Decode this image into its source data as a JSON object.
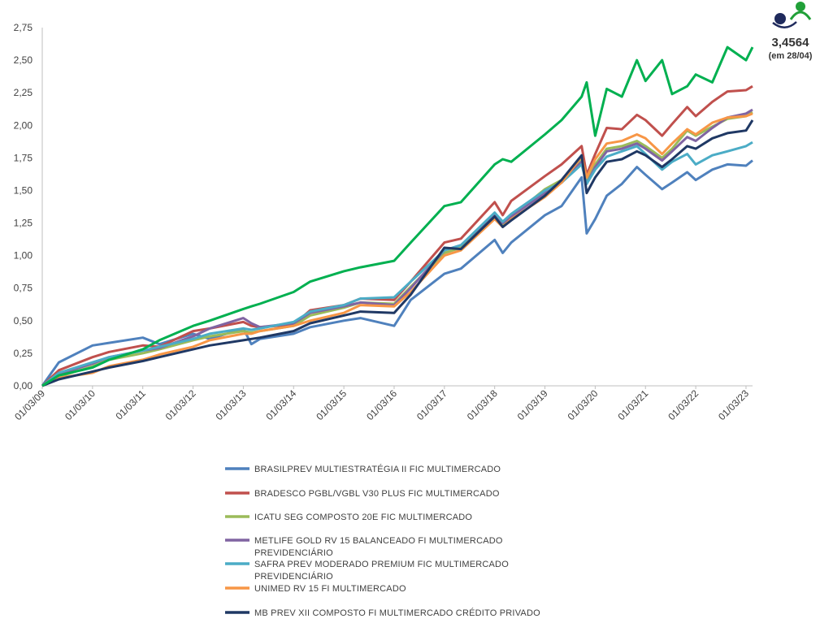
{
  "badge": {
    "value": "3,4564",
    "date_note": "(em 28/04)",
    "logo_colors": {
      "dark": "#1f2a5c",
      "green": "#21a038"
    }
  },
  "chart_data": {
    "type": "line",
    "title": "",
    "xlabel": "",
    "ylabel": "",
    "ylim": [
      0,
      2.75
    ],
    "y_ticks": [
      "0,00",
      "0,25",
      "0,50",
      "0,75",
      "1,00",
      "1,25",
      "1,50",
      "1,75",
      "2,00",
      "2,25",
      "2,50",
      "2,75"
    ],
    "x_ticks": [
      "01/03/09",
      "01/03/10",
      "01/03/11",
      "01/03/12",
      "01/03/13",
      "01/03/14",
      "01/03/15",
      "01/03/16",
      "01/03/17",
      "01/03/18",
      "01/03/19",
      "01/03/20",
      "01/03/21",
      "01/03/22",
      "01/03/23"
    ],
    "x": [
      2009.17,
      2009.5,
      2010.17,
      2010.5,
      2011.17,
      2011.5,
      2012.17,
      2012.5,
      2013.17,
      2013.33,
      2013.5,
      2014.17,
      2014.5,
      2015.17,
      2015.5,
      2016.17,
      2016.5,
      2017.17,
      2017.5,
      2018.17,
      2018.33,
      2018.5,
      2019.17,
      2019.5,
      2019.9,
      2020.0,
      2020.17,
      2020.4,
      2020.7,
      2021.0,
      2021.17,
      2021.5,
      2021.7,
      2022.0,
      2022.17,
      2022.5,
      2022.8,
      2023.17,
      2023.3
    ],
    "grid": false,
    "legend_position": "bottom",
    "series": [
      {
        "name": "BRASILPREV MULTIESTRATÉGIA II FIC MULTIMERCADO",
        "color": "#4f81bd",
        "values": [
          0.0,
          0.18,
          0.31,
          0.33,
          0.37,
          0.32,
          0.4,
          0.36,
          0.44,
          0.32,
          0.36,
          0.4,
          0.45,
          0.5,
          0.52,
          0.46,
          0.66,
          0.86,
          0.9,
          1.12,
          1.02,
          1.1,
          1.31,
          1.38,
          1.6,
          1.17,
          1.28,
          1.46,
          1.55,
          1.68,
          1.62,
          1.51,
          1.56,
          1.64,
          1.58,
          1.66,
          1.7,
          1.69,
          1.73
        ]
      },
      {
        "name": "BRADESCO PGBL/VGBL V30 PLUS FIC MULTIMERCADO",
        "color": "#c0504d",
        "values": [
          0.0,
          0.12,
          0.22,
          0.26,
          0.31,
          0.3,
          0.42,
          0.44,
          0.49,
          0.46,
          0.45,
          0.47,
          0.58,
          0.62,
          0.67,
          0.66,
          0.8,
          1.1,
          1.13,
          1.41,
          1.31,
          1.42,
          1.61,
          1.7,
          1.84,
          1.62,
          1.78,
          1.98,
          1.97,
          2.08,
          2.04,
          1.92,
          2.01,
          2.14,
          2.07,
          2.18,
          2.26,
          2.27,
          2.3
        ]
      },
      {
        "name": "ICATU SEG COMPOSTO 20E FIC MULTIMERCADO",
        "color": "#9bbb59",
        "values": [
          0.0,
          0.07,
          0.15,
          0.2,
          0.25,
          0.28,
          0.35,
          0.38,
          0.42,
          0.41,
          0.42,
          0.46,
          0.54,
          0.6,
          0.64,
          0.63,
          0.76,
          1.02,
          1.06,
          1.29,
          1.24,
          1.3,
          1.51,
          1.58,
          1.74,
          1.56,
          1.7,
          1.82,
          1.84,
          1.88,
          1.84,
          1.75,
          1.82,
          1.96,
          1.92,
          1.99,
          2.05,
          2.07,
          2.1
        ]
      },
      {
        "name": "METLIFE GOLD RV 15 BALANCEADO FI MULTIMERCADO PREVIDENCIÁRIO",
        "color": "#8064a2",
        "values": [
          0.0,
          0.09,
          0.17,
          0.22,
          0.27,
          0.29,
          0.38,
          0.44,
          0.52,
          0.48,
          0.45,
          0.48,
          0.56,
          0.61,
          0.64,
          0.62,
          0.75,
          1.04,
          1.08,
          1.32,
          1.25,
          1.3,
          1.48,
          1.56,
          1.72,
          1.55,
          1.68,
          1.8,
          1.82,
          1.86,
          1.82,
          1.73,
          1.8,
          1.91,
          1.88,
          1.98,
          2.06,
          2.09,
          2.12
        ]
      },
      {
        "name": "SAFRA PREV MODERADO PREMIUM FIC MULTIMERCADO PREVIDENCIÁRIO",
        "color": "#4bacc6",
        "values": [
          0.0,
          0.1,
          0.18,
          0.22,
          0.27,
          0.3,
          0.36,
          0.4,
          0.44,
          0.43,
          0.44,
          0.49,
          0.57,
          0.62,
          0.67,
          0.68,
          0.8,
          1.04,
          1.08,
          1.33,
          1.26,
          1.32,
          1.5,
          1.56,
          1.7,
          1.55,
          1.66,
          1.76,
          1.8,
          1.84,
          1.78,
          1.66,
          1.72,
          1.78,
          1.7,
          1.77,
          1.8,
          1.84,
          1.87
        ]
      },
      {
        "name": "UNIMED RV 15 FI MULTIMERCADO",
        "color": "#f79646",
        "values": [
          0.0,
          0.06,
          0.1,
          0.15,
          0.2,
          0.24,
          0.3,
          0.35,
          0.4,
          0.4,
          0.42,
          0.46,
          0.5,
          0.56,
          0.62,
          0.61,
          0.72,
          1.0,
          1.04,
          1.28,
          1.22,
          1.28,
          1.45,
          1.56,
          1.76,
          1.6,
          1.74,
          1.86,
          1.88,
          1.93,
          1.9,
          1.78,
          1.86,
          1.97,
          1.93,
          2.02,
          2.06,
          2.07,
          2.09
        ]
      },
      {
        "name": "MB PREV XII COMPOSTO FI MULTIMERCADO CRÉDITO PRIVADO",
        "color": "#1f3864",
        "values": [
          0.0,
          0.05,
          0.11,
          0.14,
          0.19,
          0.22,
          0.28,
          0.31,
          0.35,
          0.36,
          0.37,
          0.42,
          0.48,
          0.54,
          0.57,
          0.56,
          0.7,
          1.06,
          1.05,
          1.3,
          1.22,
          1.27,
          1.46,
          1.58,
          1.77,
          1.48,
          1.6,
          1.72,
          1.74,
          1.8,
          1.77,
          1.68,
          1.74,
          1.84,
          1.82,
          1.9,
          1.94,
          1.96,
          2.04
        ]
      },
      {
        "name": "",
        "color": "#00b050",
        "values": [
          0.0,
          0.08,
          0.14,
          0.2,
          0.28,
          0.35,
          0.46,
          0.5,
          0.59,
          0.61,
          0.63,
          0.72,
          0.8,
          0.88,
          0.91,
          0.96,
          1.1,
          1.38,
          1.41,
          1.7,
          1.74,
          1.72,
          1.93,
          2.04,
          2.22,
          2.33,
          1.92,
          2.28,
          2.22,
          2.5,
          2.34,
          2.5,
          2.24,
          2.3,
          2.39,
          2.33,
          2.6,
          2.5,
          2.6
        ]
      }
    ]
  }
}
